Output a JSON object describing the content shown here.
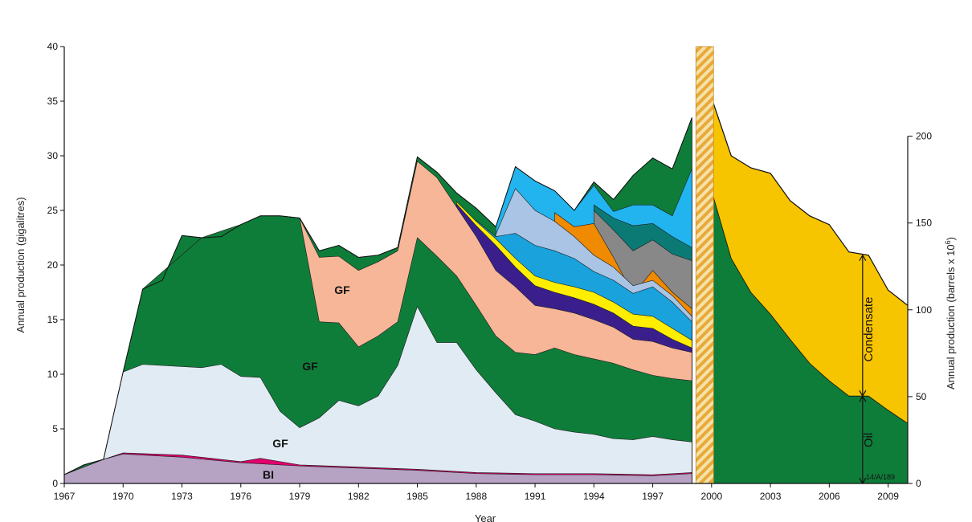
{
  "chart_data": {
    "type": "area",
    "title": "",
    "xlabel": "Year",
    "ylabel_left": "Annual production (gigalitres)",
    "ylabel_right_prefix": "Annual production (barrels x 10",
    "ylabel_right_exp": "6",
    "ylabel_right_suffix": ")",
    "xlim": [
      1967,
      2010
    ],
    "ylim": [
      0,
      40
    ],
    "y2lim_barrels_million": [
      0,
      251.6
    ],
    "x_ticks": [
      1967,
      1970,
      1973,
      1976,
      1979,
      1982,
      1985,
      1988,
      1991,
      1994,
      1997,
      2000,
      2003,
      2006,
      2009
    ],
    "y_ticks": [
      0,
      5,
      10,
      15,
      20,
      25,
      30,
      35,
      40
    ],
    "y2_ticks": [
      0,
      50,
      100,
      150,
      200
    ],
    "grid": false,
    "legend": "none",
    "forecast_divider": {
      "from": 1999.2,
      "to": 2000.1
    },
    "series_total_history": {
      "x": [
        1967,
        1968,
        1969,
        1970,
        1971,
        1972,
        1973,
        1974,
        1975,
        1976,
        1977,
        1978,
        1979,
        1980,
        1981,
        1982,
        1983,
        1984,
        1985,
        1986,
        1987,
        1988,
        1989,
        1990,
        1991,
        1992,
        1993,
        1994,
        1995,
        1996,
        1997,
        1998,
        1999
      ],
      "values": [
        0.8,
        1.7,
        2.2,
        10.2,
        17.8,
        18.6,
        22.7,
        22.5,
        22.6,
        23.7,
        24.5,
        24.5,
        24.3,
        21.3,
        21.8,
        20.7,
        20.9,
        21.6,
        29.9,
        28.5,
        26.6,
        25.2,
        23.5,
        29.0,
        27.7,
        26.8,
        25.0,
        27.6,
        26.0,
        28.2,
        29.8,
        28.8,
        33.5
      ]
    },
    "series_oil_forecast": {
      "x": [
        2000,
        2001,
        2002,
        2003,
        2004,
        2005,
        2006,
        2007,
        2008,
        2009,
        2010
      ],
      "values": [
        26.8,
        20.6,
        17.5,
        15.5,
        13.2,
        11.0,
        9.4,
        8.0,
        8.0,
        6.7,
        5.5
      ]
    },
    "series_total_forecast": {
      "x": [
        2000,
        2001,
        2002,
        2003,
        2004,
        2005,
        2006,
        2007,
        2008,
        2009,
        2010
      ],
      "values": [
        35.3,
        30.0,
        28.9,
        28.4,
        25.9,
        24.5,
        23.7,
        21.2,
        20.9,
        17.7,
        16.3
      ]
    },
    "field_layers": [
      {
        "x": [
          1967,
          1969,
          1970,
          1973,
          1976,
          1979,
          1982,
          1985,
          1988,
          1991,
          1994,
          1997,
          1999
        ],
        "values": [
          0.8,
          2.2,
          2.7,
          2.4,
          1.9,
          1.6,
          1.4,
          1.2,
          0.9,
          0.8,
          0.8,
          0.7,
          0.9
        ],
        "color": "#b6a3c4"
      },
      {
        "x": [
          1967,
          1969,
          1970,
          1973,
          1976,
          1977,
          1979,
          1982,
          1985,
          1988,
          1991,
          1994,
          1997,
          1999
        ],
        "values": [
          0.8,
          2.2,
          2.8,
          2.6,
          2.0,
          2.3,
          1.7,
          1.5,
          1.3,
          1.0,
          0.9,
          0.9,
          0.8,
          1.0
        ],
        "color": "#e0006e"
      },
      {
        "x": [
          1969,
          1970,
          1971,
          1974,
          1975,
          1976,
          1977,
          1978,
          1979,
          1980,
          1981,
          1982,
          1983,
          1984,
          1985,
          1986,
          1987,
          1988,
          1989,
          1990,
          1991,
          1992,
          1993,
          1994,
          1995,
          1996,
          1997,
          1998,
          1999
        ],
        "values": [
          2.2,
          10.2,
          10.9,
          10.6,
          10.9,
          9.8,
          9.7,
          6.6,
          5.1,
          6.0,
          7.6,
          7.1,
          8.0,
          10.8,
          16.2,
          12.9,
          12.9,
          10.4,
          8.3,
          6.3,
          5.7,
          5.0,
          4.7,
          4.5,
          4.1,
          4.0,
          4.3,
          4.0,
          3.8
        ],
        "color": "#e1ebf3"
      },
      {
        "x": [
          1970,
          1971,
          1974,
          1976,
          1977,
          1978,
          1979,
          1980,
          1981,
          1982,
          1983,
          1984,
          1985,
          1986,
          1987,
          1988,
          1989,
          1990,
          1991,
          1992,
          1993,
          1994,
          1995,
          1996,
          1997,
          1998,
          1999
        ],
        "values": [
          10.2,
          17.8,
          22.5,
          23.7,
          24.5,
          24.5,
          24.3,
          14.8,
          14.7,
          12.5,
          13.5,
          14.8,
          22.5,
          20.8,
          19.0,
          16.3,
          13.5,
          12.0,
          11.8,
          12.4,
          11.8,
          11.4,
          11.0,
          10.4,
          9.9,
          9.6,
          9.4
        ],
        "color": "#0f7d3a"
      },
      {
        "x": [
          1977,
          1978,
          1979,
          1980,
          1981,
          1982,
          1983,
          1984,
          1985,
          1986,
          1987,
          1988,
          1989,
          1990,
          1991,
          1992,
          1993,
          1994,
          1995,
          1996,
          1997,
          1998,
          1999
        ],
        "values": [
          24.5,
          24.5,
          24.3,
          20.7,
          20.8,
          19.5,
          20.3,
          21.3,
          29.5,
          28.0,
          25.3,
          22.6,
          19.5,
          18.0,
          16.3,
          16.0,
          15.6,
          15.0,
          14.3,
          13.2,
          13.0,
          12.4,
          12.0
        ],
        "color": "#f6b697"
      },
      {
        "x": [
          1987,
          1988,
          1989,
          1990,
          1991,
          1992,
          1993,
          1994,
          1995,
          1996,
          1997,
          1998,
          1999
        ],
        "values": [
          25.6,
          23.6,
          21.8,
          19.8,
          18.1,
          17.5,
          17.0,
          16.4,
          15.6,
          14.4,
          14.2,
          13.2,
          12.4
        ],
        "color": "#3a1f8c"
      },
      {
        "x": [
          1987,
          1988,
          1989,
          1990,
          1991,
          1992,
          1993,
          1994,
          1995,
          1996,
          1997,
          1998,
          1999
        ],
        "values": [
          25.8,
          24.0,
          22.4,
          20.6,
          19.0,
          18.4,
          18.0,
          17.5,
          16.6,
          15.5,
          15.3,
          14.2,
          13.1
        ],
        "color": "#ffee00"
      },
      {
        "x": [
          1988,
          1989,
          1990,
          1991,
          1992,
          1993,
          1994,
          1995,
          1996,
          1997,
          1998,
          1999
        ],
        "values": [
          24.1,
          22.6,
          22.9,
          21.8,
          21.3,
          20.6,
          19.4,
          18.6,
          17.4,
          18.0,
          16.6,
          14.8
        ],
        "color": "#1aa2dd"
      },
      {
        "x": [
          1989,
          1990,
          1991,
          1992,
          1993,
          1994,
          1995,
          1996,
          1997,
          1998,
          1999
        ],
        "values": [
          22.8,
          27.0,
          25.0,
          24.0,
          22.6,
          20.9,
          19.8,
          18.1,
          18.6,
          17.2,
          15.3
        ],
        "color": "#a9c4e4"
      },
      {
        "x": [
          1992,
          1993,
          1994,
          1995,
          1996,
          1997,
          1998,
          1999
        ],
        "values": [
          24.8,
          23.5,
          23.8,
          20.7,
          17.3,
          19.5,
          17.5,
          16.0
        ],
        "color": "#f08a00"
      },
      {
        "x": [
          1994,
          1995,
          1996,
          1997,
          1998,
          1999
        ],
        "values": [
          25.0,
          23.2,
          21.3,
          22.3,
          21.0,
          20.4
        ],
        "color": "#888888"
      },
      {
        "x": [
          1994,
          1995,
          1996,
          1997,
          1998,
          1999
        ],
        "values": [
          25.5,
          24.3,
          23.6,
          23.8,
          22.6,
          21.6
        ],
        "color": "#0b7a74"
      },
      {
        "x": [
          1989,
          1990,
          1991,
          1992,
          1993,
          1994,
          1995,
          1996,
          1997,
          1998,
          1999
        ],
        "values": [
          23.5,
          29.0,
          27.7,
          26.8,
          25.0,
          27.3,
          24.9,
          25.5,
          25.5,
          24.5,
          28.8
        ],
        "color": "#22b4ee"
      }
    ],
    "annotations": {
      "gf_1": "GF",
      "gf_2": "GF",
      "gf_3": "GF",
      "bi": "BI",
      "condensate": "Condensate",
      "oil": "Oil",
      "ref": "14/A/189"
    },
    "colors": {
      "oil_green": "#0f7d3a",
      "condensate_yellow": "#f7c400",
      "divider_hatch": "#e8a93a",
      "divider_bg": "#f6e2a8"
    }
  }
}
